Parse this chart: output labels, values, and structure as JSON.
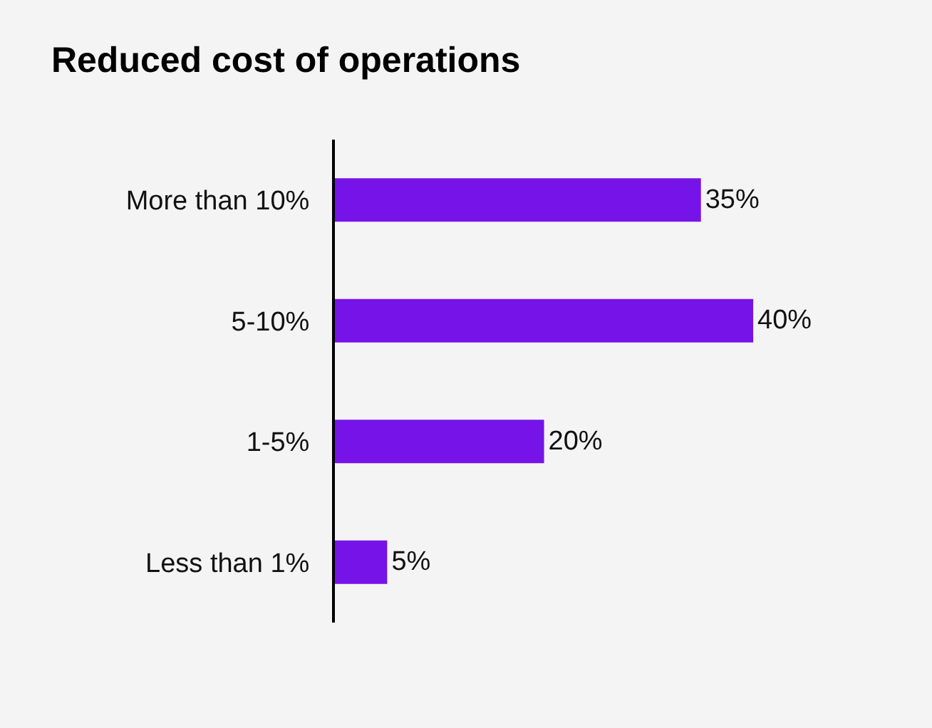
{
  "chart_data": {
    "type": "bar",
    "orientation": "horizontal",
    "title": "Reduced cost of operations",
    "categories": [
      "More than 10%",
      "5-10%",
      "1-5%",
      "Less than 1%"
    ],
    "values": [
      35,
      40,
      20,
      5
    ],
    "value_labels": [
      "35%",
      "40%",
      "20%",
      "5%"
    ],
    "color": "#7613e8",
    "grid": false,
    "legend": false
  }
}
